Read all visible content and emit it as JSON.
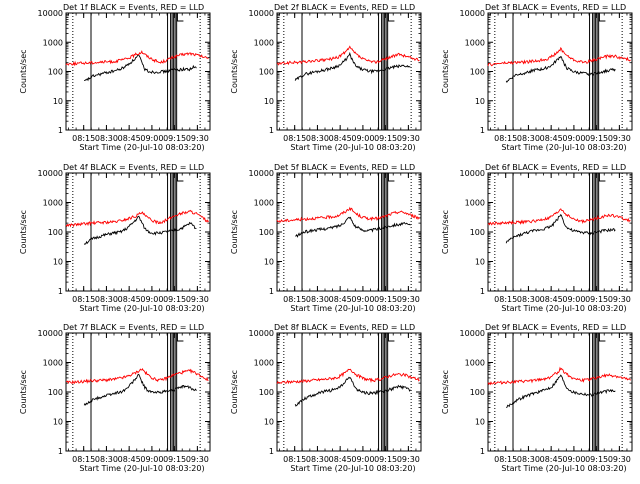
{
  "figure": {
    "ylabel": "Counts/sec",
    "xlabel": "Start Time (20-Jul-10 08:03:20)",
    "title_suffix": "BLACK = Events, RED = LLD",
    "y_tick_labels": [
      "1",
      "10",
      "100",
      "1000",
      "10000"
    ],
    "x_tick_labels": [
      "08:15",
      "08:30",
      "08:45",
      "09:00",
      "09:15",
      "09:30"
    ],
    "colors": {
      "events": "#000000",
      "lld": "#ff0000",
      "axes": "#000000"
    }
  },
  "chart_data": [
    {
      "type": "line",
      "title": "Det 1f BLACK = Events, RED = LLD",
      "detector": "Det 1f",
      "xlabel": "Start Time (20-Jul-10 08:03:20)",
      "ylabel": "Counts/sec",
      "yscale": "log",
      "ylim": [
        1,
        10000
      ],
      "x_ticks": [
        "08:15",
        "08:30",
        "08:45",
        "09:00",
        "09:15",
        "09:30"
      ],
      "series": [
        {
          "name": "Events",
          "color": "#000000",
          "t_min": [
            12,
            18,
            24,
            30,
            36,
            40,
            44,
            48,
            50,
            52,
            55,
            58,
            62,
            66,
            70,
            74,
            78,
            82,
            84,
            86
          ],
          "values": [
            45,
            70,
            85,
            100,
            120,
            160,
            230,
            360,
            200,
            120,
            100,
            95,
            100,
            100,
            115,
            115,
            120,
            120,
            140,
            130
          ]
        },
        {
          "name": "LLD",
          "color": "#ff0000",
          "t_min": [
            0,
            8,
            16,
            24,
            32,
            40,
            46,
            50,
            54,
            58,
            62,
            66,
            70,
            74,
            78,
            82,
            86,
            90,
            94
          ],
          "values": [
            180,
            190,
            200,
            210,
            220,
            270,
            380,
            470,
            320,
            250,
            200,
            240,
            300,
            350,
            390,
            410,
            370,
            320,
            280
          ]
        }
      ]
    },
    {
      "type": "line",
      "title": "Det 2f BLACK = Events, RED = LLD",
      "detector": "Det 2f",
      "xlabel": "Start Time (20-Jul-10 08:03:20)",
      "ylabel": "Counts/sec",
      "yscale": "log",
      "ylim": [
        1,
        10000
      ],
      "x_ticks": [
        "08:15",
        "08:30",
        "08:45",
        "09:00",
        "09:15",
        "09:30"
      ],
      "series": [
        {
          "name": "Events",
          "color": "#000000",
          "t_min": [
            12,
            18,
            24,
            30,
            36,
            42,
            46,
            48,
            50,
            52,
            56,
            60,
            64,
            68,
            72,
            76,
            80,
            84,
            88
          ],
          "values": [
            50,
            80,
            95,
            110,
            130,
            170,
            280,
            380,
            230,
            150,
            120,
            105,
            100,
            110,
            120,
            140,
            150,
            160,
            140
          ]
        },
        {
          "name": "LLD",
          "color": "#ff0000",
          "t_min": [
            0,
            8,
            16,
            24,
            32,
            40,
            46,
            48,
            52,
            56,
            60,
            64,
            68,
            72,
            76,
            80,
            84,
            88,
            94
          ],
          "values": [
            180,
            200,
            210,
            230,
            250,
            300,
            500,
            660,
            400,
            280,
            230,
            210,
            230,
            280,
            330,
            380,
            350,
            300,
            240
          ]
        }
      ]
    },
    {
      "type": "line",
      "title": "Det 3f BLACK = Events, RED = LLD",
      "detector": "Det 3f",
      "xlabel": "Start Time (20-Jul-10 08:03:20)",
      "ylabel": "Counts/sec",
      "yscale": "log",
      "ylim": [
        1,
        10000
      ],
      "x_ticks": [
        "08:15",
        "08:30",
        "08:45",
        "09:00",
        "09:15",
        "09:30"
      ],
      "series": [
        {
          "name": "Events",
          "color": "#000000",
          "t_min": [
            12,
            18,
            24,
            30,
            36,
            42,
            46,
            48,
            50,
            52,
            56,
            60,
            64,
            68,
            72,
            76,
            80,
            84
          ],
          "values": [
            45,
            75,
            90,
            110,
            120,
            160,
            260,
            340,
            200,
            130,
            100,
            90,
            85,
            80,
            90,
            100,
            110,
            120
          ]
        },
        {
          "name": "LLD",
          "color": "#ff0000",
          "t_min": [
            0,
            8,
            16,
            24,
            32,
            40,
            46,
            48,
            52,
            56,
            60,
            64,
            68,
            72,
            76,
            80,
            84,
            88,
            94
          ],
          "values": [
            170,
            190,
            200,
            210,
            230,
            280,
            450,
            600,
            350,
            260,
            220,
            210,
            230,
            270,
            310,
            340,
            330,
            290,
            250
          ]
        }
      ]
    },
    {
      "type": "line",
      "title": "Det 4f BLACK = Events, RED = LLD",
      "detector": "Det 4f",
      "xlabel": "Start Time (20-Jul-10 08:03:20)",
      "ylabel": "Counts/sec",
      "yscale": "log",
      "ylim": [
        1,
        10000
      ],
      "x_ticks": [
        "08:15",
        "08:30",
        "08:45",
        "09:00",
        "09:15",
        "09:30"
      ],
      "series": [
        {
          "name": "Events",
          "color": "#000000",
          "t_min": [
            12,
            18,
            24,
            30,
            36,
            40,
            44,
            48,
            50,
            52,
            55,
            58,
            62,
            66,
            70,
            74,
            78,
            82,
            86
          ],
          "values": [
            40,
            60,
            75,
            90,
            100,
            130,
            200,
            330,
            210,
            130,
            100,
            90,
            95,
            100,
            110,
            120,
            150,
            200,
            130
          ]
        },
        {
          "name": "LLD",
          "color": "#ff0000",
          "t_min": [
            0,
            8,
            16,
            24,
            32,
            40,
            46,
            50,
            54,
            58,
            62,
            66,
            70,
            74,
            78,
            82,
            86,
            90,
            94
          ],
          "values": [
            170,
            180,
            200,
            210,
            220,
            270,
            350,
            450,
            300,
            230,
            210,
            250,
            320,
            400,
            450,
            500,
            420,
            300,
            220
          ]
        }
      ]
    },
    {
      "type": "line",
      "title": "Det 5f BLACK = Events, RED = LLD",
      "detector": "Det 5f",
      "xlabel": "Start Time (20-Jul-10 08:03:20)",
      "ylabel": "Counts/sec",
      "yscale": "log",
      "ylim": [
        1,
        10000
      ],
      "x_ticks": [
        "08:15",
        "08:30",
        "08:45",
        "09:00",
        "09:15",
        "09:30"
      ],
      "series": [
        {
          "name": "Events",
          "color": "#000000",
          "t_min": [
            12,
            18,
            24,
            30,
            36,
            42,
            46,
            48,
            50,
            52,
            56,
            60,
            64,
            68,
            72,
            76,
            80,
            84,
            88
          ],
          "values": [
            70,
            100,
            115,
            125,
            140,
            170,
            260,
            330,
            210,
            150,
            120,
            110,
            120,
            130,
            150,
            170,
            180,
            190,
            170
          ]
        },
        {
          "name": "LLD",
          "color": "#ff0000",
          "t_min": [
            0,
            8,
            16,
            24,
            32,
            40,
            46,
            48,
            52,
            56,
            60,
            64,
            68,
            72,
            76,
            80,
            84,
            88,
            94
          ],
          "values": [
            230,
            250,
            270,
            290,
            310,
            350,
            520,
            650,
            420,
            320,
            290,
            280,
            300,
            350,
            420,
            480,
            460,
            380,
            290
          ]
        }
      ]
    },
    {
      "type": "line",
      "title": "Det 6f BLACK = Events, RED = LLD",
      "detector": "Det 6f",
      "xlabel": "Start Time (20-Jul-10 08:03:20)",
      "ylabel": "Counts/sec",
      "yscale": "log",
      "ylim": [
        1,
        10000
      ],
      "x_ticks": [
        "08:15",
        "08:30",
        "08:45",
        "09:00",
        "09:15",
        "09:30"
      ],
      "series": [
        {
          "name": "Events",
          "color": "#000000",
          "t_min": [
            12,
            18,
            24,
            30,
            36,
            42,
            46,
            48,
            50,
            52,
            56,
            60,
            64,
            68,
            72,
            76,
            80,
            84
          ],
          "values": [
            45,
            70,
            90,
            110,
            125,
            160,
            280,
            400,
            220,
            140,
            110,
            100,
            95,
            90,
            100,
            110,
            115,
            120
          ]
        },
        {
          "name": "LLD",
          "color": "#ff0000",
          "t_min": [
            0,
            8,
            16,
            24,
            32,
            40,
            46,
            48,
            52,
            56,
            60,
            64,
            68,
            72,
            76,
            80,
            84,
            88,
            94
          ],
          "values": [
            190,
            200,
            210,
            220,
            240,
            290,
            460,
            620,
            380,
            280,
            240,
            230,
            260,
            300,
            340,
            370,
            350,
            300,
            240
          ]
        }
      ]
    },
    {
      "type": "line",
      "title": "Det 7f BLACK = Events, RED = LLD",
      "detector": "Det 7f",
      "xlabel": "Start Time (20-Jul-10 08:03:20)",
      "ylabel": "Counts/sec",
      "yscale": "log",
      "ylim": [
        1,
        10000
      ],
      "x_ticks": [
        "08:15",
        "08:30",
        "08:45",
        "09:00",
        "09:15",
        "09:30"
      ],
      "series": [
        {
          "name": "Events",
          "color": "#000000",
          "t_min": [
            12,
            18,
            24,
            30,
            36,
            40,
            44,
            48,
            50,
            52,
            55,
            58,
            62,
            66,
            70,
            74,
            78,
            82,
            86
          ],
          "values": [
            35,
            55,
            70,
            85,
            100,
            130,
            220,
            380,
            230,
            140,
            105,
            95,
            100,
            105,
            115,
            130,
            160,
            140,
            110
          ]
        },
        {
          "name": "LLD",
          "color": "#ff0000",
          "t_min": [
            0,
            8,
            16,
            24,
            32,
            40,
            46,
            50,
            54,
            58,
            62,
            66,
            70,
            74,
            78,
            82,
            86,
            90,
            94
          ],
          "values": [
            210,
            220,
            240,
            250,
            270,
            330,
            450,
            600,
            380,
            280,
            250,
            290,
            360,
            430,
            480,
            520,
            430,
            330,
            250
          ]
        }
      ]
    },
    {
      "type": "line",
      "title": "Det 8f BLACK = Events, RED = LLD",
      "detector": "Det 8f",
      "xlabel": "Start Time (20-Jul-10 08:03:20)",
      "ylabel": "Counts/sec",
      "yscale": "log",
      "ylim": [
        1,
        10000
      ],
      "x_ticks": [
        "08:15",
        "08:30",
        "08:45",
        "09:00",
        "09:15",
        "09:30"
      ],
      "series": [
        {
          "name": "Events",
          "color": "#000000",
          "t_min": [
            12,
            18,
            24,
            30,
            36,
            42,
            46,
            48,
            50,
            52,
            56,
            60,
            64,
            68,
            72,
            76,
            80,
            84,
            88
          ],
          "values": [
            35,
            60,
            80,
            100,
            115,
            150,
            250,
            330,
            200,
            130,
            100,
            90,
            95,
            100,
            110,
            130,
            150,
            140,
            120
          ]
        },
        {
          "name": "LLD",
          "color": "#ff0000",
          "t_min": [
            0,
            8,
            16,
            24,
            32,
            40,
            46,
            48,
            52,
            56,
            60,
            64,
            68,
            72,
            76,
            80,
            84,
            88,
            94
          ],
          "values": [
            200,
            220,
            230,
            250,
            270,
            310,
            480,
            620,
            400,
            300,
            260,
            250,
            270,
            320,
            370,
            400,
            380,
            320,
            260
          ]
        }
      ]
    },
    {
      "type": "line",
      "title": "Det 9f BLACK = Events, RED = LLD",
      "detector": "Det 9f",
      "xlabel": "Start Time (20-Jul-10 08:03:20)",
      "ylabel": "Counts/sec",
      "yscale": "log",
      "ylim": [
        1,
        10000
      ],
      "x_ticks": [
        "08:15",
        "08:30",
        "08:45",
        "09:00",
        "09:15",
        "09:30"
      ],
      "series": [
        {
          "name": "Events",
          "color": "#000000",
          "t_min": [
            12,
            18,
            24,
            30,
            36,
            42,
            46,
            48,
            50,
            52,
            56,
            60,
            64,
            68,
            72,
            76,
            80,
            84
          ],
          "values": [
            30,
            50,
            70,
            90,
            110,
            150,
            270,
            380,
            220,
            140,
            100,
            90,
            85,
            80,
            90,
            100,
            110,
            110
          ]
        },
        {
          "name": "LLD",
          "color": "#ff0000",
          "t_min": [
            0,
            8,
            16,
            24,
            32,
            40,
            46,
            48,
            52,
            56,
            60,
            64,
            68,
            72,
            76,
            80,
            84,
            88,
            94
          ],
          "values": [
            200,
            210,
            220,
            230,
            250,
            300,
            470,
            640,
            400,
            300,
            260,
            250,
            270,
            310,
            350,
            370,
            350,
            300,
            250
          ]
        }
      ]
    }
  ]
}
